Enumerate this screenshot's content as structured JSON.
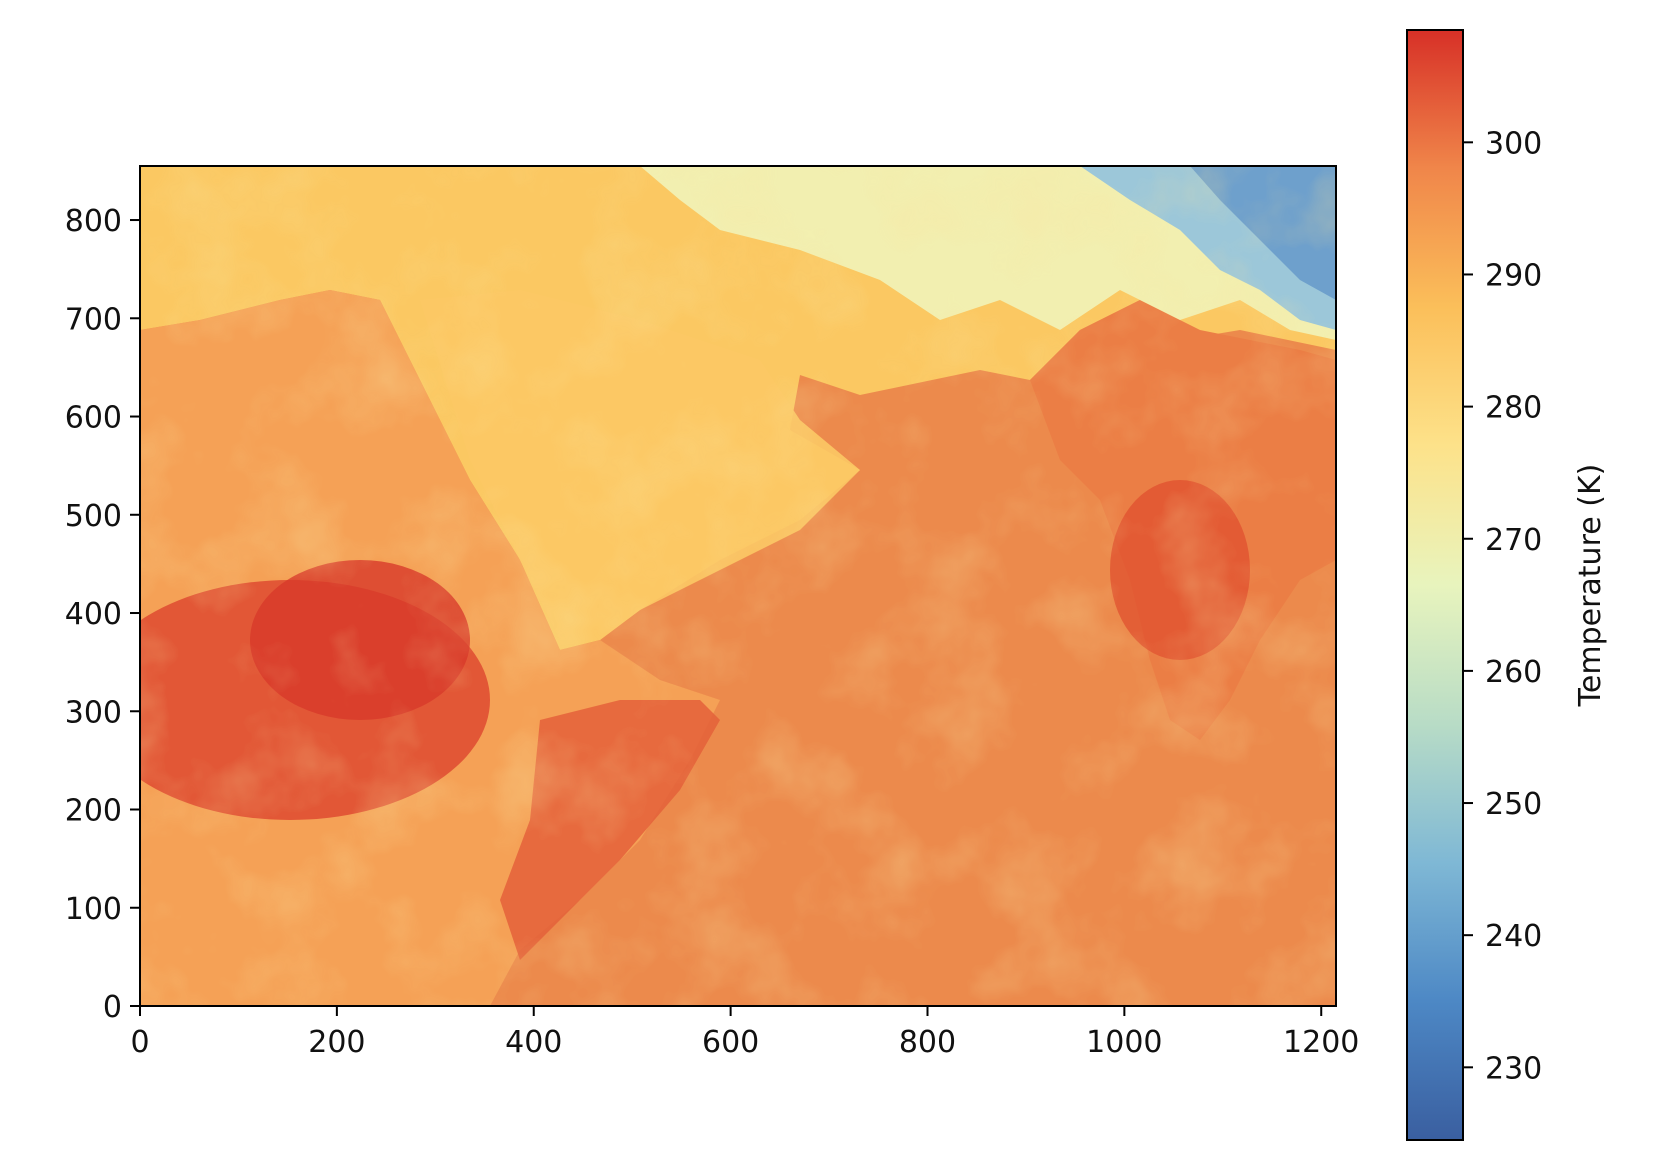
{
  "chart_data": {
    "type": "heatmap",
    "title": "",
    "xlabel": "",
    "ylabel": "",
    "xlim": [
      0,
      1215
    ],
    "ylim": [
      0,
      855
    ],
    "x_ticks": [
      0,
      200,
      400,
      600,
      800,
      1000,
      1200
    ],
    "y_ticks": [
      0,
      100,
      200,
      300,
      400,
      500,
      600,
      700,
      800
    ],
    "colorbar": {
      "label": "Temperature (K)",
      "range": [
        224.5,
        308.5
      ],
      "ticks": [
        230,
        240,
        250,
        260,
        270,
        280,
        290,
        300
      ],
      "colormap": [
        "#3a5fa0",
        "#4d88c5",
        "#7fb8d5",
        "#b8dcc6",
        "#e8f4bd",
        "#fde28a",
        "#fbbf5a",
        "#f0864a",
        "#d73027"
      ]
    },
    "grid": false,
    "legend": "none"
  }
}
